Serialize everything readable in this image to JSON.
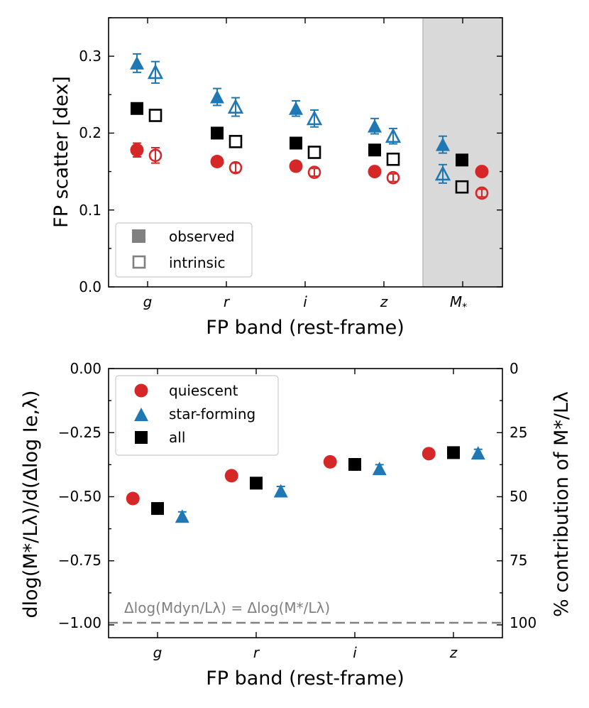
{
  "colors": {
    "quiescent": "#d62728",
    "star_forming": "#1f77b4",
    "all": "#000000",
    "observed_legend": "#808080",
    "mstar_shade": "#d9d9d9",
    "mstar_border": "#bbbbbb",
    "dashed_line": "#808080"
  },
  "chart_data": [
    {
      "id": "top",
      "type": "scatter",
      "title": "",
      "xlabel": "FP band (rest-frame)",
      "ylabel": "FP scatter [dex]",
      "categories": [
        "g",
        "r",
        "i",
        "z",
        "M*"
      ],
      "category_labels": [
        "g",
        "r",
        "i",
        "z",
        "M"
      ],
      "category_subscripts": [
        "",
        "",
        "",
        "",
        "*"
      ],
      "ylim": [
        0.0,
        0.35
      ],
      "yticks": [
        0.0,
        0.1,
        0.2,
        0.3
      ],
      "ytick_labels": [
        "0.0",
        "0.1",
        "0.2",
        "0.3"
      ],
      "shaded_category": "M*",
      "legend": {
        "position": "lower-left",
        "entries": [
          {
            "label": "observed",
            "style": "filled"
          },
          {
            "label": "intrinsic",
            "style": "open"
          }
        ]
      },
      "series": [
        {
          "name": "star-forming observed",
          "population": "star_forming",
          "marker": "triangle",
          "filled": true,
          "values": [
            0.291,
            0.247,
            0.232,
            0.209,
            0.185
          ],
          "errors": [
            0.012,
            0.011,
            0.01,
            0.01,
            0.011
          ]
        },
        {
          "name": "star-forming intrinsic",
          "population": "star_forming",
          "marker": "triangle",
          "filled": false,
          "values": [
            0.279,
            0.234,
            0.219,
            0.196,
            0.147
          ],
          "errors": [
            0.014,
            0.012,
            0.011,
            0.01,
            0.012
          ]
        },
        {
          "name": "all observed",
          "population": "all",
          "marker": "square",
          "filled": true,
          "values": [
            0.232,
            0.2,
            0.187,
            0.178,
            0.165
          ],
          "errors": [
            0,
            0,
            0,
            0,
            0
          ]
        },
        {
          "name": "all intrinsic",
          "population": "all",
          "marker": "square",
          "filled": false,
          "values": [
            0.223,
            0.189,
            0.175,
            0.166,
            0.13
          ],
          "errors": [
            0,
            0,
            0,
            0,
            0
          ]
        },
        {
          "name": "quiescent observed",
          "population": "quiescent",
          "marker": "circle",
          "filled": true,
          "values": [
            0.178,
            0.163,
            0.157,
            0.15,
            0.15
          ],
          "errors": [
            0.009,
            0.005,
            0.004,
            0.004,
            0.004
          ]
        },
        {
          "name": "quiescent intrinsic",
          "population": "quiescent",
          "marker": "circle",
          "filled": false,
          "values": [
            0.171,
            0.155,
            0.149,
            0.142,
            0.122
          ],
          "errors": [
            0.01,
            0.006,
            0.005,
            0.005,
            0.005
          ]
        }
      ]
    },
    {
      "id": "bottom",
      "type": "scatter",
      "title": "",
      "xlabel": "FP band (rest-frame)",
      "ylabel": "dlog(M*/Lλ)/d(Δlog Ie,λ)",
      "ylabel_right": "% contribution of M*/Lλ",
      "categories": [
        "g",
        "r",
        "i",
        "z"
      ],
      "ylim": [
        -1.05,
        0.0
      ],
      "yticks": [
        0.0,
        -0.25,
        -0.5,
        -0.75,
        -1.0
      ],
      "ytick_labels": [
        "0.00",
        "−0.25",
        "−0.50",
        "−0.75",
        "−1.00"
      ],
      "right_ticks": [
        0,
        25,
        50,
        75,
        100
      ],
      "right_tick_labels": [
        "0",
        "25",
        "50",
        "75",
        "100"
      ],
      "reference_line": {
        "y": -1.0,
        "label": "Δlog(Mdyn/Lλ) = Δlog(M*/Lλ)"
      },
      "legend": {
        "position": "top-left",
        "entries": [
          {
            "label": "quiescent",
            "population": "quiescent",
            "marker": "circle"
          },
          {
            "label": "star-forming",
            "population": "star_forming",
            "marker": "triangle"
          },
          {
            "label": "all",
            "population": "all",
            "marker": "square"
          }
        ]
      },
      "series": [
        {
          "name": "quiescent",
          "population": "quiescent",
          "marker": "circle",
          "offset": -0.25,
          "values": [
            -0.507,
            -0.418,
            -0.364,
            -0.332
          ],
          "errors": [
            0.012,
            0.01,
            0.01,
            0.008
          ]
        },
        {
          "name": "all",
          "population": "all",
          "marker": "square",
          "offset": 0.0,
          "values": [
            -0.546,
            -0.447,
            -0.374,
            -0.328
          ],
          "errors": [
            0,
            0,
            0,
            0
          ]
        },
        {
          "name": "star-forming",
          "population": "star_forming",
          "marker": "triangle",
          "offset": 0.25,
          "values": [
            -0.577,
            -0.478,
            -0.391,
            -0.33
          ],
          "errors": [
            0.018,
            0.018,
            0.016,
            0.015
          ]
        }
      ]
    }
  ]
}
